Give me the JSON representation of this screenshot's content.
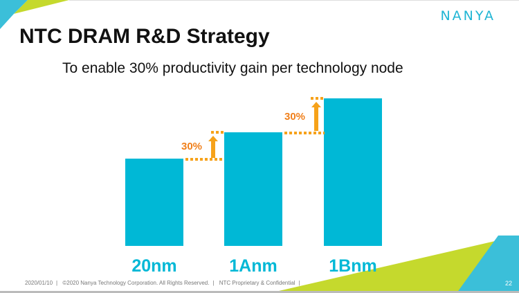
{
  "header": {
    "title": "NTC DRAM R&D Strategy",
    "subtitle": "To enable 30% productivity gain per technology node",
    "logo": "NANYA"
  },
  "footer": {
    "date": "2020/01/10",
    "copyright": "©2020 Nanya Technology Corporation. All Rights Reserved.",
    "confidential": "NTC Proprietary & Confidential",
    "page": "22"
  },
  "colors": {
    "bar": "#00b8d6",
    "arrow": "#f6a21a",
    "accent_lime": "#c5d92d",
    "accent_blue": "#3bbfd9"
  },
  "chart_data": {
    "type": "bar",
    "title": "",
    "categories": [
      "20nm",
      "1Anm",
      "1Bnm"
    ],
    "values": [
      1.0,
      1.3,
      1.69
    ],
    "annotations": [
      "30%",
      "30%"
    ],
    "xlabel": "",
    "ylabel": "",
    "ylim": [
      0,
      1.69
    ],
    "grid": false
  }
}
